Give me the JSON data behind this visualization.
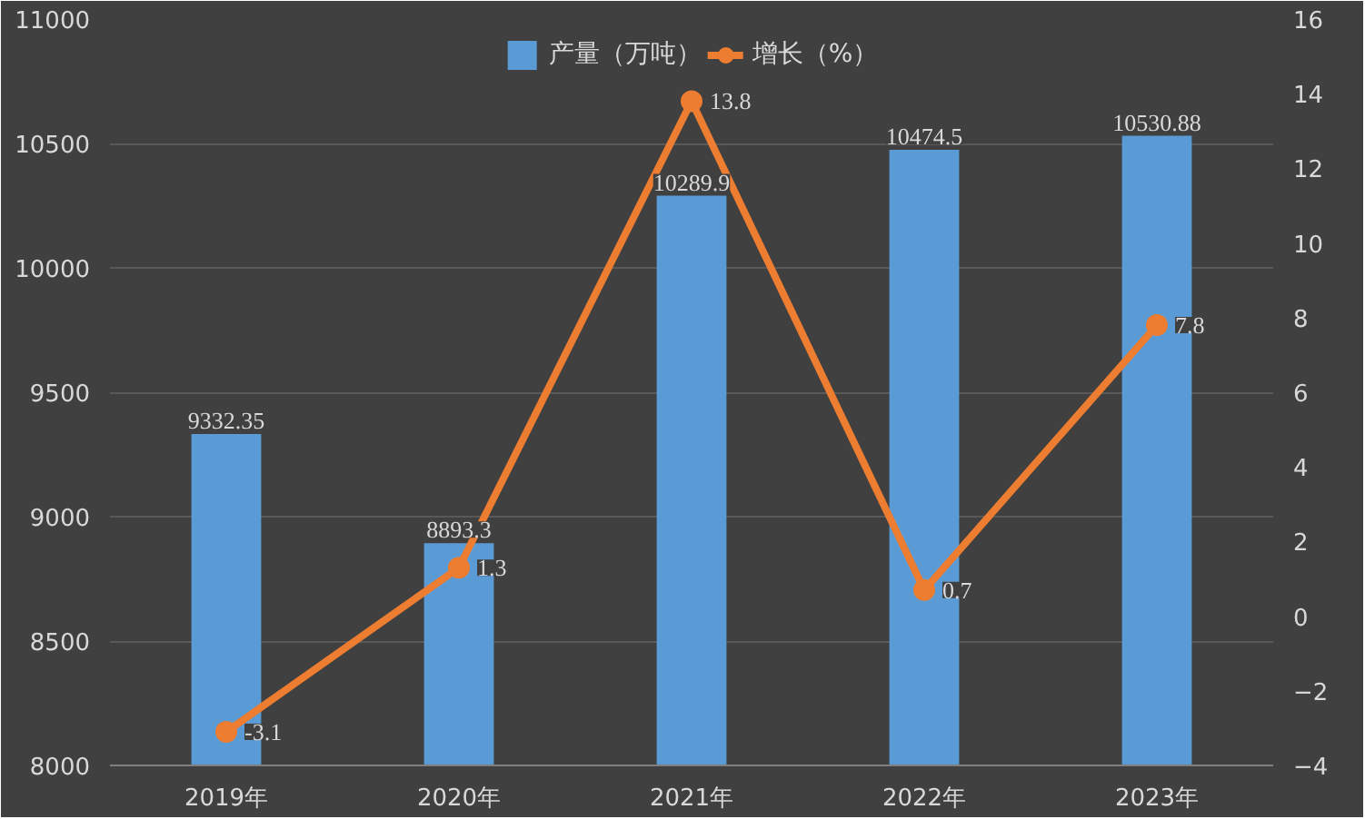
{
  "chart_data": {
    "type": "bar",
    "categories": [
      "2019年",
      "2020年",
      "2021年",
      "2022年",
      "2023年"
    ],
    "series": [
      {
        "name": "产量（万吨）",
        "color": "#5b9bd5",
        "values": [
          9332.35,
          8893.3,
          10289.9,
          10474.5,
          10530.88
        ]
      },
      {
        "name": "增长（%）",
        "type": "line",
        "axis": "y2",
        "color": "#ed7d31",
        "values": [
          -3.1,
          1.3,
          13.8,
          0.7,
          7.8
        ]
      }
    ],
    "ylim": [
      8000,
      11000
    ],
    "yticks": [
      8000,
      8500,
      9000,
      9500,
      10000,
      10500,
      11000
    ],
    "y2lim": [
      -4,
      16
    ],
    "y2ticks": [
      -4,
      -2,
      0,
      2,
      4,
      6,
      8,
      10,
      12,
      14,
      16
    ],
    "grid": "y",
    "legend": "top",
    "marker": "circle",
    "data_labels": true
  }
}
